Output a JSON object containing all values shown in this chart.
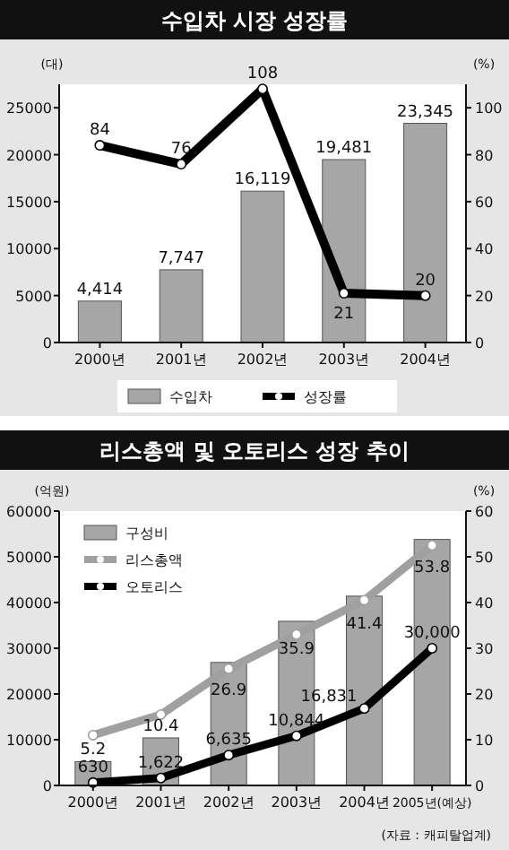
{
  "chart_data": [
    {
      "type": "bar",
      "title": "수입차 시장 성장률",
      "ylabel": "(대)",
      "y2label": "(%)",
      "categories": [
        "2000년",
        "2001년",
        "2002년",
        "2003년",
        "2004년"
      ],
      "series": [
        {
          "name": "수입차",
          "color": "#a6a6a6",
          "values": [
            4414,
            7747,
            16119,
            19481,
            23345
          ],
          "value_labels": [
            "4,414",
            "7,747",
            "16,119",
            "19,481",
            "23,345"
          ]
        },
        {
          "name": "성장률",
          "type": "line",
          "axis": "y2",
          "color": "#000000",
          "values": [
            84,
            76,
            108,
            21,
            20
          ],
          "value_labels": [
            "84",
            "76",
            "108",
            "21",
            "20"
          ]
        }
      ],
      "ylim": [
        0,
        27500
      ],
      "yticks": [
        0,
        5000,
        10000,
        15000,
        20000,
        25000
      ],
      "y2lim": [
        0,
        110
      ],
      "y2ticks": [
        0,
        20,
        40,
        60,
        80,
        100
      ],
      "legend": "bottom",
      "marker": "circle",
      "grid": false
    },
    {
      "type": "bar",
      "title": "리스총액 및 오토리스 성장 추이",
      "ylabel": "(억원)",
      "y2label": "(%)",
      "categories": [
        "2000년",
        "2001년",
        "2002년",
        "2003년",
        "2004년",
        "2005년(예상)"
      ],
      "series": [
        {
          "name": "구성비",
          "axis": "y2",
          "color": "#a6a6a6",
          "values": [
            5.2,
            10.4,
            26.9,
            35.9,
            41.4,
            53.8
          ],
          "value_labels": [
            "5.2",
            "10.4",
            "26.9",
            "35.9",
            "41.4",
            "53.8"
          ]
        },
        {
          "name": "리스총액",
          "type": "line",
          "color": "#a0a0a0",
          "values": [
            11000,
            15500,
            25500,
            33000,
            40500,
            52500
          ]
        },
        {
          "name": "오토리스",
          "type": "line",
          "color": "#000000",
          "values": [
            630,
            1622,
            6635,
            10844,
            16831,
            30000
          ],
          "value_labels": [
            "630",
            "1,622",
            "6,635",
            "10,844",
            "16,831",
            "30,000"
          ]
        }
      ],
      "ylim": [
        0,
        60000
      ],
      "yticks": [
        0,
        10000,
        20000,
        30000,
        40000,
        50000,
        60000
      ],
      "y2lim": [
        0,
        60
      ],
      "y2ticks": [
        0,
        10,
        20,
        30,
        40,
        50,
        60
      ],
      "legend": "top left",
      "marker": "circle",
      "grid": false,
      "annotations": [
        "(자료 : 캐피탈업계)"
      ]
    }
  ]
}
